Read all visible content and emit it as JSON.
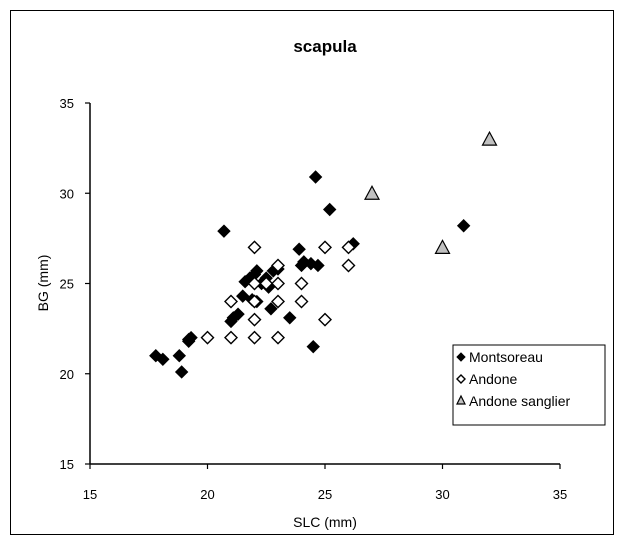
{
  "chart_data": {
    "type": "scatter",
    "title": "scapula",
    "xlabel": "SLC (mm)",
    "ylabel": "BG (mm)",
    "xlim": [
      15,
      35
    ],
    "ylim": [
      15,
      35
    ],
    "xticks": [
      "15",
      "20",
      "25",
      "30",
      "35"
    ],
    "yticks": [
      "15",
      "20",
      "25",
      "30",
      "35"
    ],
    "grid": false,
    "legend_position": "bottom-right",
    "series": [
      {
        "name": "Montsoreau",
        "marker": "filled-diamond",
        "color": "#000000",
        "points": [
          [
            17.8,
            21.0
          ],
          [
            18.1,
            20.8
          ],
          [
            18.8,
            21.0
          ],
          [
            18.9,
            20.1
          ],
          [
            19.2,
            21.9
          ],
          [
            19.3,
            22.0
          ],
          [
            19.2,
            21.8
          ],
          [
            20.7,
            27.9
          ],
          [
            21.0,
            22.9
          ],
          [
            21.1,
            23.1
          ],
          [
            21.3,
            23.3
          ],
          [
            21.5,
            24.3
          ],
          [
            21.6,
            25.1
          ],
          [
            21.8,
            25.3
          ],
          [
            21.9,
            24.1
          ],
          [
            22.0,
            25.5
          ],
          [
            22.1,
            25.7
          ],
          [
            22.1,
            24.0
          ],
          [
            22.3,
            25.0
          ],
          [
            22.4,
            25.1
          ],
          [
            22.5,
            25.3
          ],
          [
            22.6,
            24.8
          ],
          [
            22.7,
            23.6
          ],
          [
            22.8,
            25.7
          ],
          [
            23.0,
            25.8
          ],
          [
            23.5,
            23.1
          ],
          [
            23.9,
            26.9
          ],
          [
            24.0,
            26.0
          ],
          [
            24.1,
            26.2
          ],
          [
            24.4,
            26.1
          ],
          [
            24.5,
            21.5
          ],
          [
            24.6,
            30.9
          ],
          [
            24.7,
            26.0
          ],
          [
            25.2,
            29.1
          ],
          [
            26.2,
            27.2
          ],
          [
            30.9,
            28.2
          ]
        ]
      },
      {
        "name": "Andone",
        "marker": "open-diamond",
        "color": "#000000",
        "points": [
          [
            20.0,
            22.0
          ],
          [
            21.0,
            22.0
          ],
          [
            21.0,
            24.0
          ],
          [
            22.0,
            22.0
          ],
          [
            22.0,
            23.0
          ],
          [
            22.0,
            24.0
          ],
          [
            22.0,
            25.0
          ],
          [
            22.0,
            27.0
          ],
          [
            22.5,
            25.0
          ],
          [
            23.0,
            22.0
          ],
          [
            23.0,
            24.0
          ],
          [
            23.0,
            25.0
          ],
          [
            23.0,
            26.0
          ],
          [
            24.0,
            24.0
          ],
          [
            24.0,
            25.0
          ],
          [
            25.0,
            23.0
          ],
          [
            25.0,
            27.0
          ],
          [
            26.0,
            26.0
          ],
          [
            26.0,
            27.0
          ]
        ]
      },
      {
        "name": "Andone sanglier",
        "marker": "open-triangle",
        "color": "#c0c0c0",
        "points": [
          [
            27.0,
            30.0
          ],
          [
            30.0,
            27.0
          ],
          [
            32.0,
            33.0
          ]
        ]
      }
    ]
  }
}
